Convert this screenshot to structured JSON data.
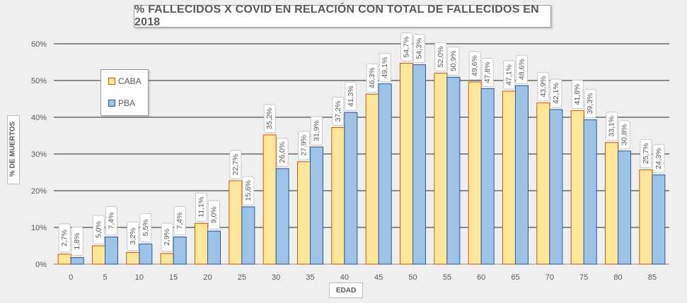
{
  "chart_data": {
    "type": "bar",
    "title": "% FALLECIDOS X COVID EN RELACIÓN CON TOTAL DE FALLECIDOS EN 2018",
    "xlabel": "EDAD",
    "ylabel": "% DE MUERTOS",
    "categories": [
      "0",
      "5",
      "10",
      "15",
      "20",
      "25",
      "30",
      "35",
      "40",
      "45",
      "50",
      "55",
      "60",
      "65",
      "70",
      "75",
      "80",
      "85"
    ],
    "series": [
      {
        "name": "CABA",
        "color": "#ffe699",
        "edge_color": "#c55a11",
        "values": [
          2.7,
          5.0,
          3.2,
          2.9,
          11.1,
          22.7,
          35.2,
          27.9,
          37.2,
          46.3,
          54.7,
          52.0,
          49.6,
          47.1,
          43.9,
          41.8,
          33.1,
          25.7
        ],
        "labels": [
          "2,7%",
          "5,0%",
          "3,2%",
          "2,9%",
          "11,1%",
          "22,7%",
          "35,2%",
          "27,9%",
          "37,2%",
          "46,3%",
          "54,7%",
          "52,0%",
          "49,6%",
          "47,1%",
          "43,9%",
          "41,8%",
          "33,1%",
          "25,7%"
        ]
      },
      {
        "name": "PBA",
        "color": "#9dc3e6",
        "edge_color": "#2f5597",
        "values": [
          1.8,
          7.4,
          5.5,
          7.4,
          9.0,
          15.6,
          26.0,
          31.9,
          41.3,
          49.1,
          54.3,
          50.9,
          47.8,
          48.6,
          42.1,
          39.3,
          30.8,
          24.3
        ],
        "labels": [
          "1,8%",
          "7,4%",
          "5,5%",
          "7,4%",
          "9,0%",
          "15,6%",
          "26,0%",
          "31,9%",
          "41,3%",
          "49,1%",
          "54,3%",
          "50,9%",
          "47,8%",
          "48,6%",
          "42,1%",
          "39,3%",
          "30,8%",
          "24,3%"
        ]
      }
    ],
    "yticks": [
      0,
      10,
      20,
      30,
      40,
      50,
      60
    ],
    "ytick_labels": [
      "0%",
      "10%",
      "20%",
      "30%",
      "40%",
      "50%",
      "60%"
    ],
    "ylim": [
      0,
      60
    ],
    "grid": true,
    "legend_position": "top-left"
  }
}
